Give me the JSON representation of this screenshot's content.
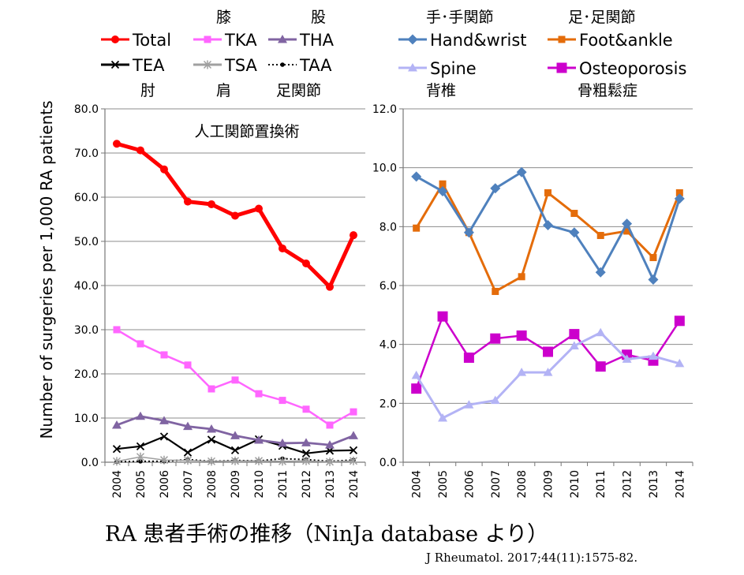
{
  "caption": "RA 患者手術の推移（NinJa database より）",
  "citation": "J Rheumatol. 2017;44(11):1575-82.",
  "chart_data": [
    {
      "type": "line",
      "annotation": "人工関節置換術",
      "ylabel": "Number of surgeries per 1,000 RA patients",
      "ylim": [
        0,
        80
      ],
      "yticks": [
        "0.0",
        "10.0",
        "20.0",
        "30.0",
        "40.0",
        "50.0",
        "60.0",
        "70.0",
        "80.0"
      ],
      "x": [
        "2004",
        "2005",
        "2006",
        "2007",
        "2008",
        "2009",
        "2010",
        "2011",
        "2012",
        "2013",
        "2014"
      ],
      "legend_position": "top",
      "series": [
        {
          "name": "Total",
          "label_ja": "",
          "color": "#ff0000",
          "marker": "circle",
          "values": [
            72.1,
            70.6,
            66.3,
            59.0,
            58.4,
            55.8,
            57.4,
            48.4,
            45.0,
            39.7,
            51.4
          ]
        },
        {
          "name": "TKA",
          "label_ja": "膝",
          "color": "#ff66ff",
          "marker": "square",
          "values": [
            30.0,
            26.8,
            24.3,
            22.0,
            16.6,
            18.6,
            15.5,
            14.0,
            12.0,
            8.4,
            11.4
          ]
        },
        {
          "name": "THA",
          "label_ja": "股",
          "color": "#8064a2",
          "marker": "triangle",
          "values": [
            8.4,
            10.4,
            9.4,
            8.1,
            7.5,
            6.0,
            5.0,
            4.3,
            4.4,
            3.9,
            6.0
          ]
        },
        {
          "name": "TEA",
          "label_ja": "肘",
          "color": "#000000",
          "marker": "x",
          "values": [
            3.0,
            3.6,
            5.8,
            2.2,
            5.1,
            2.7,
            5.2,
            3.7,
            2.0,
            2.6,
            2.7
          ]
        },
        {
          "name": "TSA",
          "label_ja": "肩",
          "color": "#a0a0a0",
          "marker": "asterisk",
          "values": [
            0.2,
            1.2,
            0.5,
            0.4,
            0.2,
            0.3,
            0.3,
            0.2,
            0.3,
            0.1,
            0.3
          ]
        },
        {
          "name": "TAA",
          "label_ja": "足関節",
          "color": "#000000",
          "marker": "dot",
          "dash": "2,3",
          "values": [
            0.1,
            0.2,
            0.2,
            0.6,
            0.2,
            0.4,
            0.3,
            0.8,
            0.6,
            0.2,
            0.5
          ]
        }
      ]
    },
    {
      "type": "line",
      "ylim": [
        0,
        12
      ],
      "yticks": [
        "0.0",
        "2.0",
        "4.0",
        "6.0",
        "8.0",
        "10.0",
        "12.0"
      ],
      "x": [
        "2004",
        "2005",
        "2006",
        "2007",
        "2008",
        "2009",
        "2010",
        "2011",
        "2012",
        "2013",
        "2014"
      ],
      "legend_position": "top",
      "series": [
        {
          "name": "Hand&wrist",
          "label_ja": "手･手関節",
          "color": "#4f81bd",
          "marker": "diamond",
          "values": [
            9.7,
            9.2,
            7.8,
            9.3,
            9.85,
            8.05,
            7.8,
            6.45,
            8.1,
            6.2,
            8.95
          ]
        },
        {
          "name": "Foot&ankle",
          "label_ja": "足･足関節",
          "color": "#e46c0a",
          "marker": "square",
          "values": [
            7.95,
            9.45,
            7.8,
            5.8,
            6.3,
            9.15,
            8.45,
            7.7,
            7.85,
            6.95,
            9.15
          ]
        },
        {
          "name": "Spine",
          "label_ja": "背椎",
          "color": "#b3b3f5",
          "marker": "triangle",
          "values": [
            2.95,
            1.5,
            1.95,
            2.1,
            3.05,
            3.05,
            3.95,
            4.4,
            3.5,
            3.6,
            3.35
          ]
        },
        {
          "name": "Osteoporosis",
          "label_ja": "骨粗鬆症",
          "color": "#cc00cc",
          "marker": "bigsquare",
          "values": [
            2.5,
            4.95,
            3.55,
            4.2,
            4.3,
            3.75,
            4.35,
            3.25,
            3.65,
            3.45,
            4.8
          ]
        }
      ]
    }
  ]
}
